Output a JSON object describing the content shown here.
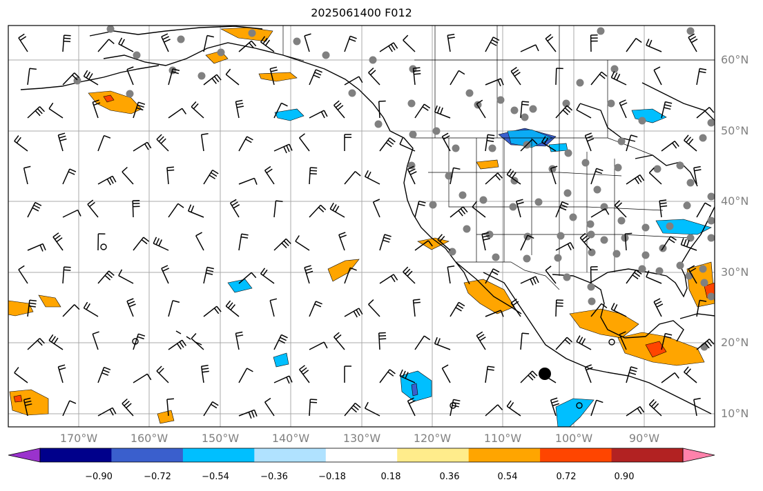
{
  "title": "2025061400 F012",
  "lat_labels": [
    "60°N",
    "50°N",
    "40°N",
    "30°N",
    "20°N",
    "10°N"
  ],
  "lon_labels": [
    "170°W",
    "160°W",
    "150°W",
    "140°W",
    "130°W",
    "120°W",
    "110°W",
    "100°W",
    "90°W"
  ],
  "colorbar": {
    "tick_labels": [
      "−0.90",
      "−0.72",
      "−0.54",
      "−0.36",
      "−0.18",
      "0.18",
      "0.36",
      "0.54",
      "0.72",
      "0.90"
    ],
    "colors": [
      "#9a32cd",
      "#00008b",
      "#3a5fcd",
      "#00bfff",
      "#b0e2ff",
      "#ffffff",
      "#ffec8b",
      "#ffa500",
      "#ff4500",
      "#b22222",
      "#ff82ab"
    ]
  },
  "colors": {
    "grid": "#a9a9a9",
    "coastline": "#000000",
    "station_dot": "#808080",
    "barb": "#000000",
    "tick_label": "#808080"
  }
}
